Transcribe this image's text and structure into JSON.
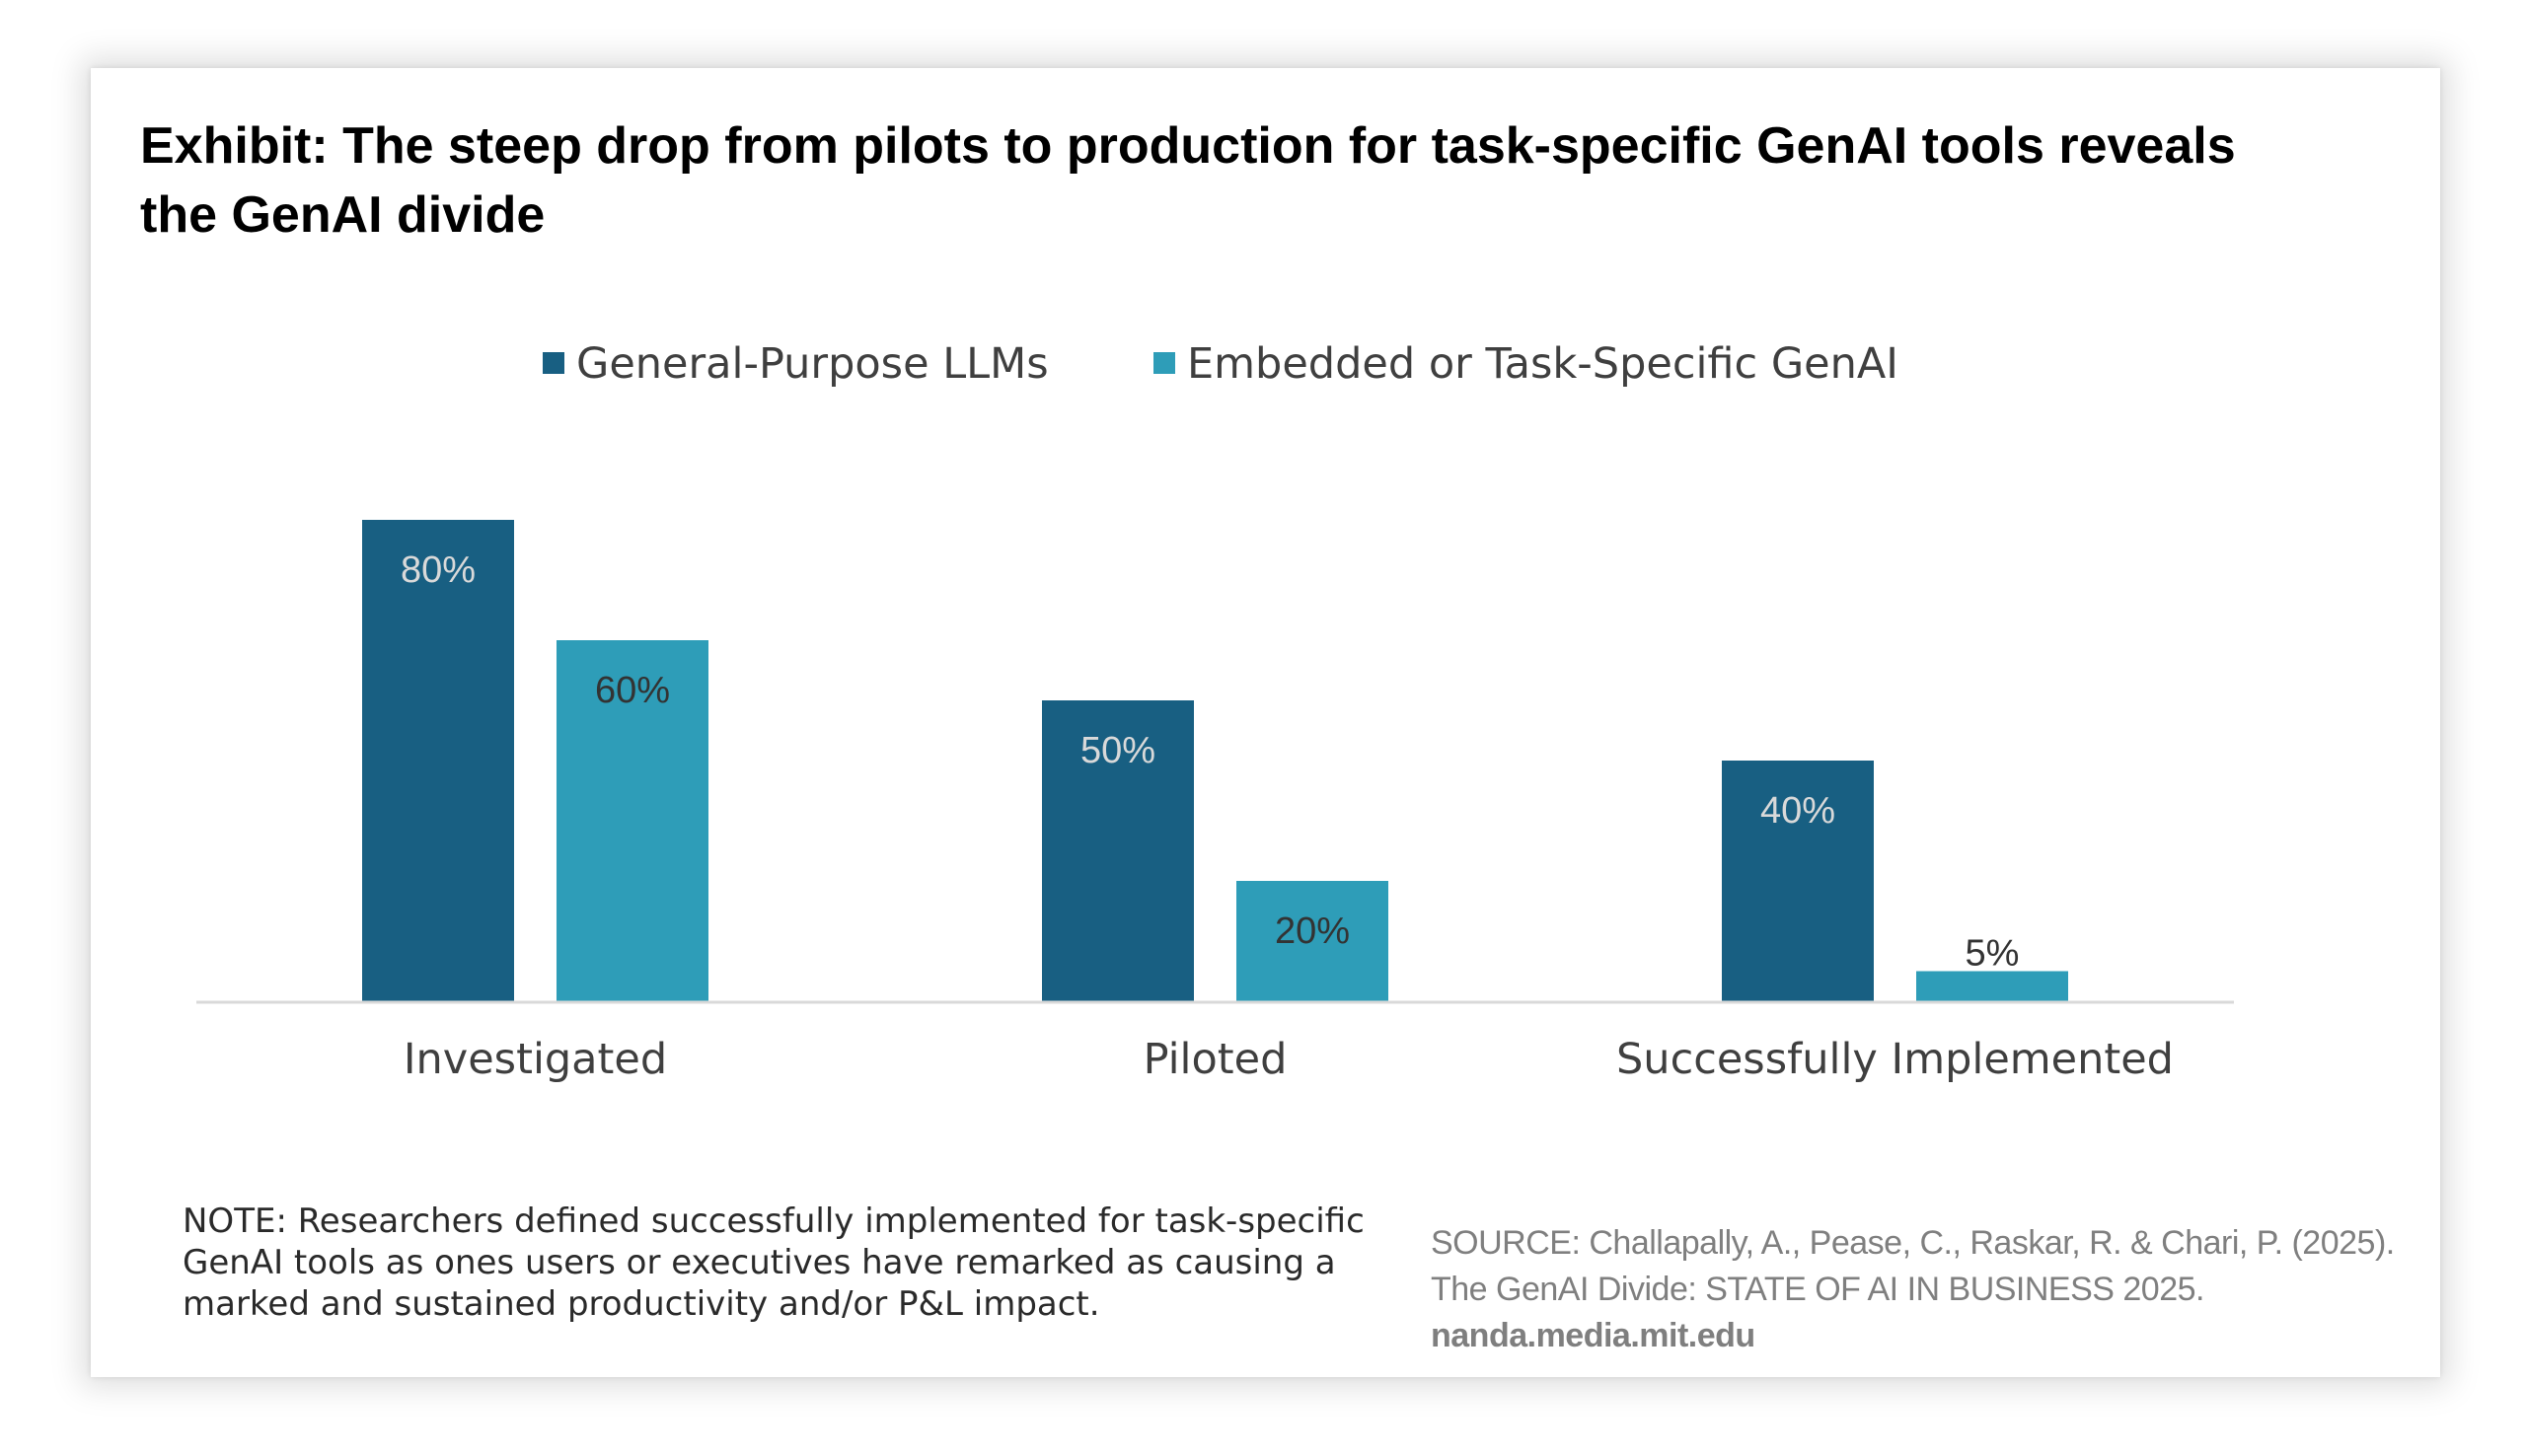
{
  "title": "Exhibit: The steep drop from pilots to production for task-specific GenAI tools reveals\nthe GenAI divide",
  "note": "NOTE: Researchers defined successfully implemented for task-specific GenAI tools as ones users or executives have remarked as causing a marked and sustained productivity and/or P&L impact.",
  "source": {
    "text": "SOURCE: Challapally, A., Pease, C., Raskar, R. & Chari, P. (2025). The GenAI Divide: STATE OF AI IN BUSINESS 2025. ",
    "site": "nanda.media.mit.edu"
  },
  "colors": {
    "series1": "#185f82",
    "series2": "#2e9db8",
    "label_on_dark": "#d9d9d9",
    "label_on_light": "#333333",
    "axis": "#d9d9d9"
  },
  "chart_data": {
    "type": "bar",
    "categories": [
      "Investigated",
      "Piloted",
      "Successfully Implemented"
    ],
    "series": [
      {
        "name": "General-Purpose LLMs",
        "values": [
          80,
          50,
          40
        ],
        "labels": [
          "80%",
          "50%",
          "40%"
        ]
      },
      {
        "name": "Embedded or Task-Specific GenAI",
        "values": [
          60,
          20,
          5
        ],
        "labels": [
          "60%",
          "20%",
          "5%"
        ]
      }
    ],
    "ylim": [
      0,
      100
    ],
    "grid": false,
    "legend": "top-center"
  }
}
